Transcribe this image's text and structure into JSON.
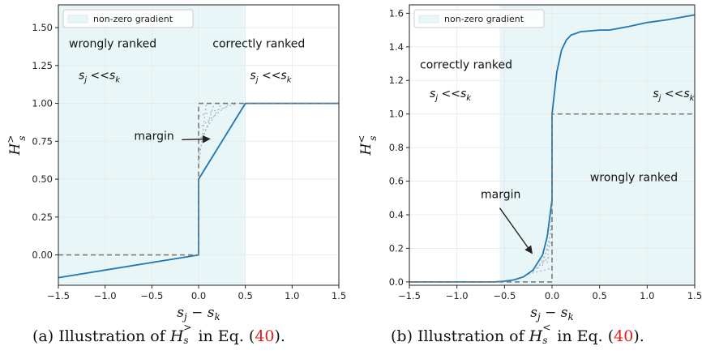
{
  "chart_data": [
    {
      "type": "line",
      "xlabel": "s_j − s_k",
      "ylabel": "H_s^>",
      "xlim": [
        -1.5,
        1.5
      ],
      "ylim": [
        -0.2,
        1.65
      ],
      "xticks": [
        "−1.5",
        "−1.0",
        "−0.5",
        "0.0",
        "0.5",
        "1.0",
        "1.5"
      ],
      "yticks": [
        "0.00",
        "0.25",
        "0.50",
        "0.75",
        "1.00",
        "1.25",
        "1.50"
      ],
      "legend": "non-zero gradient",
      "legend_position": "top-left",
      "grid": true,
      "shaded_region": [
        -1.5,
        0.5
      ],
      "series": [
        {
          "style": "solid",
          "x": [
            -1.5,
            0.0,
            0.0,
            0.5,
            1.5
          ],
          "y": [
            -0.15,
            0.0,
            0.5,
            1.0,
            1.0
          ]
        },
        {
          "style": "dashed",
          "x": [
            -1.5,
            0.0,
            0.0,
            1.5
          ],
          "y": [
            0.0,
            0.0,
            1.0,
            1.0
          ]
        }
      ],
      "annotations": {
        "left_region": "wrongly ranked",
        "right_region": "correctly ranked",
        "left_condition": "s_j < < s_k",
        "right_condition": "s_j < < s_k",
        "arrow_label": "margin"
      }
    },
    {
      "type": "line",
      "xlabel": "s_j − s_k",
      "ylabel": "H_s^<",
      "xlim": [
        -1.5,
        1.5
      ],
      "ylim": [
        -0.02,
        1.65
      ],
      "xticks": [
        "−1.5",
        "−1.0",
        "−0.5",
        "0.0",
        "0.5",
        "1.0",
        "1.5"
      ],
      "yticks": [
        "0.0",
        "0.2",
        "0.4",
        "0.6",
        "0.8",
        "1.0",
        "1.2",
        "1.4",
        "1.6"
      ],
      "legend": "non-zero gradient",
      "legend_position": "top-left",
      "grid": true,
      "shaded_region": [
        -0.55,
        1.5
      ],
      "series": [
        {
          "style": "solid",
          "x": [
            -1.5,
            -0.6,
            -0.5,
            -0.4,
            -0.3,
            -0.2,
            -0.1,
            -0.05,
            0.0,
            0.0,
            0.05,
            0.1,
            0.15,
            0.2,
            0.3,
            0.4,
            0.5,
            0.6,
            0.8,
            1.0,
            1.2,
            1.5
          ],
          "y": [
            0.0,
            0.0,
            0.004,
            0.012,
            0.03,
            0.07,
            0.16,
            0.27,
            0.49,
            1.0,
            1.25,
            1.38,
            1.44,
            1.47,
            1.49,
            1.495,
            1.5,
            1.5,
            1.52,
            1.545,
            1.56,
            1.59
          ]
        },
        {
          "style": "dashed",
          "x": [
            -1.5,
            0.0,
            0.0,
            1.5
          ],
          "y": [
            0.0,
            0.0,
            1.0,
            1.0
          ]
        }
      ],
      "annotations": {
        "left_region": "correctly ranked",
        "right_region": "wrongly ranked",
        "left_condition": "s_j < < s_k",
        "right_condition": "s_j < < s_k",
        "arrow_label": "margin"
      }
    }
  ],
  "captions": {
    "a": {
      "prefix": "(a) Illustration of ",
      "symbol": "H",
      "sub": "s",
      "sup": ">",
      "middle": " in Eq. (",
      "ref": "40",
      "suffix": ")."
    },
    "b": {
      "prefix": "(b) Illustration of ",
      "symbol": "H",
      "sub": "s",
      "sup": "<",
      "middle": " in Eq. (",
      "ref": "40",
      "suffix": ")."
    }
  },
  "colors": {
    "line": "#1f77b4",
    "dashed": "#7a7a7a",
    "shade": "#e8f6f8",
    "grid": "#e8e8e8"
  }
}
